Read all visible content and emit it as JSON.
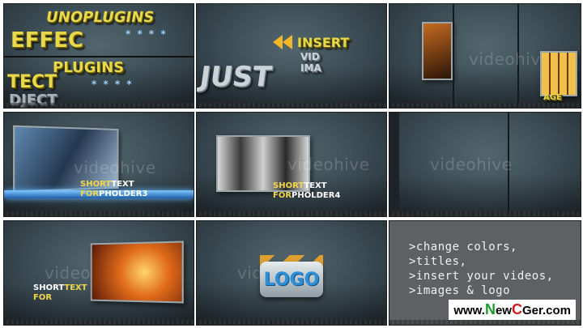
{
  "watermark": "videohive",
  "panels": {
    "p1": {
      "lines": [
        "UNOPLUGINS",
        "EFFEC",
        "PLUGINS",
        "TECT",
        "DJECT"
      ],
      "stars": "* * * *"
    },
    "p2": {
      "insert": "INSERT",
      "vid": "VID",
      "ima": "IMA",
      "just": "JUST"
    },
    "p3": {
      "tail": "AGE"
    },
    "p4": {
      "short": "SHORT",
      "text": "TEXT",
      "for": "FOR",
      "placeholder": "PHOLDER",
      "num": "3"
    },
    "p5": {
      "short": "SHORT",
      "text": "TEXT",
      "for": "FOR",
      "placeholder": "PHOLDER",
      "num": "4"
    },
    "p7": {
      "short": "SHORT",
      "text": "TEXT",
      "for": "FOR"
    },
    "p8": {
      "logo": "LOGO"
    }
  },
  "info": {
    "lines": [
      ">change colors,",
      ">titles,",
      ">insert your videos,",
      ">images & logo"
    ]
  },
  "site": {
    "prefix": "www.",
    "n": "N",
    "ew": "ew",
    "c": "C",
    "rest": "Ger.com"
  },
  "colors": {
    "yellow": "#e8d84a",
    "blue": "#2c8fd8",
    "green": "#1a9c2a",
    "red": "#d21c1c"
  }
}
